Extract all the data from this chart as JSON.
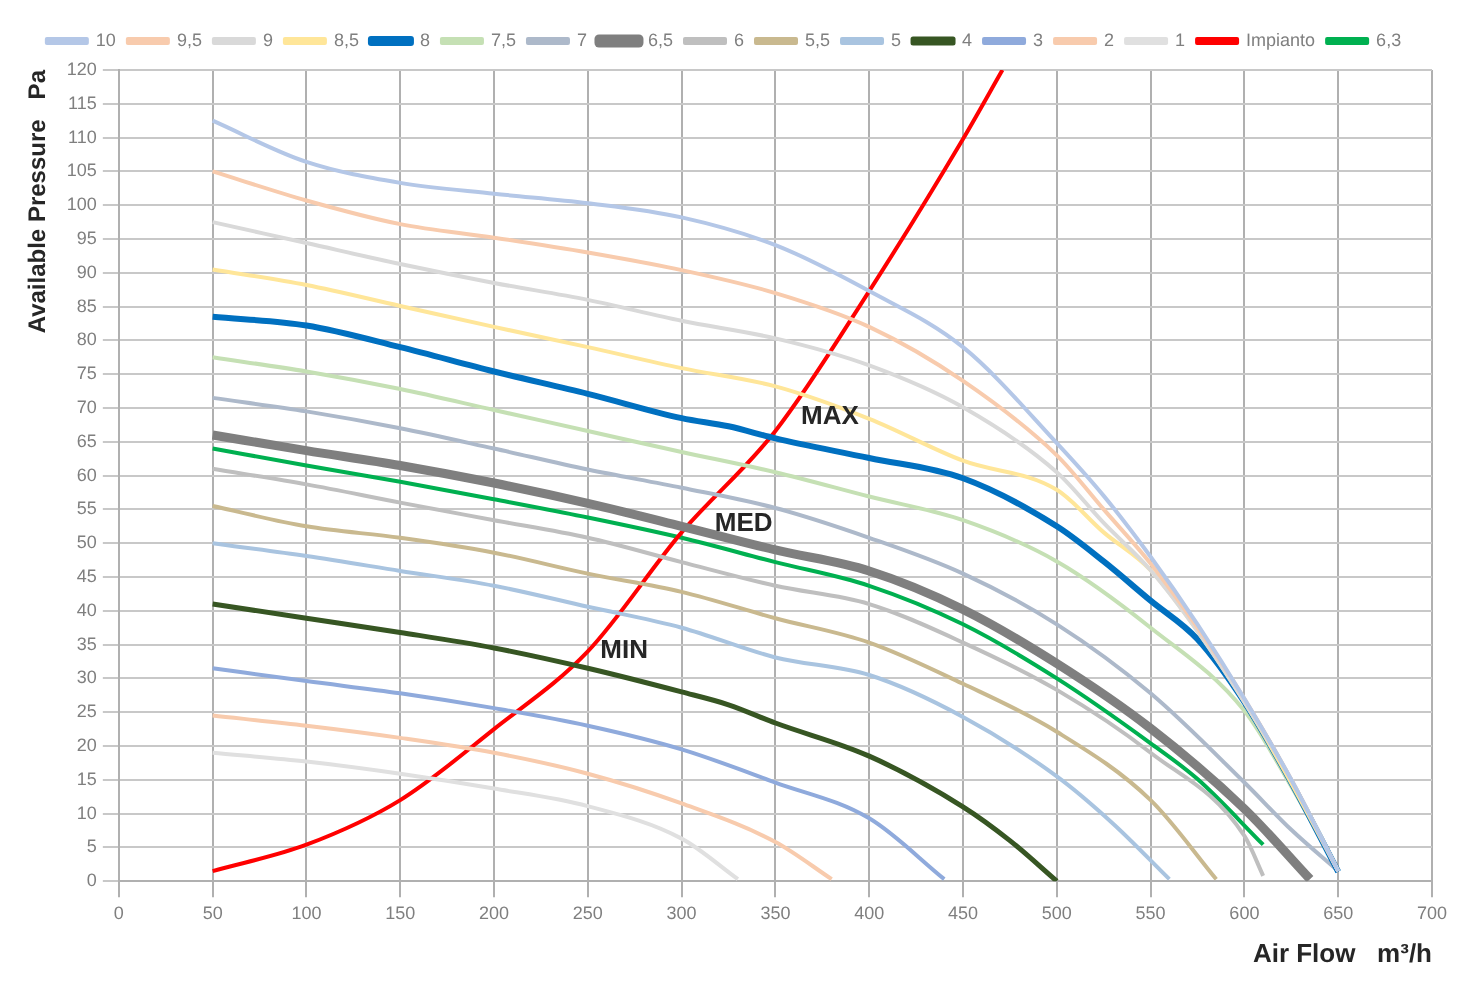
{
  "chart_data": {
    "type": "line",
    "xlabel": "Air Flow   m³/h",
    "ylabel": "Available Pressure   Pa",
    "xlim": [
      0,
      700
    ],
    "xticks": [
      0,
      50,
      100,
      150,
      200,
      250,
      300,
      350,
      400,
      450,
      500,
      550,
      600,
      650,
      700
    ],
    "ylim": [
      0,
      120
    ],
    "yticks": [
      0,
      5,
      10,
      15,
      20,
      25,
      30,
      35,
      40,
      45,
      50,
      55,
      60,
      65,
      70,
      75,
      80,
      85,
      90,
      95,
      100,
      105,
      110,
      115,
      120
    ],
    "grid": true,
    "legend": "top",
    "marker": "none",
    "line_style": "solid",
    "annotations": [
      {
        "text": "MAX",
        "x": 353,
        "y": 66.4
      },
      {
        "text": "MED",
        "x": 307,
        "y": 50.6
      },
      {
        "text": "MIN",
        "x": 246,
        "y": 31.8
      }
    ],
    "series": [
      {
        "name": "10",
        "color": "#b4c7e7",
        "x": [
          50,
          100,
          150,
          200,
          250,
          300,
          350,
          400,
          450,
          500,
          525,
          550,
          575,
          600,
          625,
          650
        ],
        "values": [
          112.5,
          106.4,
          103.3,
          101.7,
          100.3,
          98.2,
          94.1,
          87.3,
          79,
          64.8,
          57,
          48,
          38,
          27,
          15,
          1.5
        ]
      },
      {
        "name": "9,5",
        "color": "#f8cbad",
        "x": [
          50,
          100,
          150,
          200,
          250,
          300,
          350,
          400,
          450,
          500,
          525,
          550,
          575,
          600,
          625,
          650
        ],
        "values": [
          105,
          100.7,
          97.2,
          95.2,
          93,
          90.4,
          87,
          82,
          74,
          63,
          55,
          47,
          37.5,
          27,
          15,
          1.5
        ]
      },
      {
        "name": "9",
        "color": "#d9d9d9",
        "x": [
          50,
          100,
          150,
          200,
          250,
          300,
          350,
          400,
          450,
          500,
          525,
          550,
          575,
          600,
          625,
          650
        ],
        "values": [
          97.5,
          94.4,
          91.3,
          88.5,
          86,
          82.9,
          80.3,
          76.3,
          70.1,
          60.5,
          53,
          46,
          37,
          26.5,
          15,
          1.5
        ]
      },
      {
        "name": "8,5",
        "color": "#ffe699",
        "x": [
          50,
          100,
          150,
          200,
          250,
          300,
          350,
          400,
          450,
          500,
          525,
          550,
          575,
          600,
          625,
          650
        ],
        "values": [
          90.5,
          88.2,
          85.1,
          82,
          79,
          75.9,
          73.2,
          68.4,
          62.2,
          57.9,
          51.6,
          46,
          37,
          26.5,
          14.5,
          1.5
        ]
      },
      {
        "name": "8",
        "color": "#0070c0",
        "x": [
          50,
          100,
          150,
          200,
          250,
          300,
          325,
          350,
          400,
          450,
          500,
          525,
          550,
          575,
          600,
          625,
          650
        ],
        "values": [
          83.5,
          82.2,
          79,
          75.4,
          72.1,
          68.5,
          67.3,
          65.5,
          62.6,
          59.6,
          52.5,
          47.3,
          41.5,
          35.8,
          26.5,
          14.6,
          1.4
        ]
      },
      {
        "name": "7,5",
        "color": "#c5e0b4",
        "x": [
          50,
          100,
          150,
          200,
          250,
          300,
          350,
          400,
          450,
          500,
          550,
          600,
          625,
          650
        ],
        "values": [
          77.5,
          75.4,
          72.8,
          69.7,
          66.6,
          63.5,
          60.5,
          56.9,
          53.4,
          47.3,
          37.5,
          25.2,
          14,
          1.5
        ]
      },
      {
        "name": "7",
        "color": "#adb9ca",
        "x": [
          50,
          100,
          150,
          200,
          250,
          300,
          350,
          400,
          450,
          500,
          550,
          600,
          625,
          650
        ],
        "values": [
          71.5,
          69.5,
          67,
          64,
          60.9,
          58.2,
          55.2,
          50.8,
          45.5,
          38,
          27.8,
          14.6,
          7.6,
          1.5
        ]
      },
      {
        "name": "6,5",
        "color": "#7f7f7f",
        "x": [
          50,
          100,
          150,
          200,
          250,
          300,
          350,
          400,
          450,
          500,
          550,
          600,
          635
        ],
        "values": [
          66,
          63.7,
          61.5,
          58.9,
          55.9,
          52.5,
          49,
          45.9,
          40.2,
          32.2,
          22.6,
          10.7,
          0.3
        ]
      },
      {
        "name": "6",
        "color": "#bfbfbf",
        "x": [
          50,
          100,
          150,
          200,
          250,
          300,
          350,
          400,
          450,
          500,
          550,
          600,
          610
        ],
        "values": [
          61,
          58.7,
          56,
          53.4,
          50.8,
          47.2,
          43.7,
          41,
          35.3,
          28.3,
          19,
          6.7,
          0.8
        ]
      },
      {
        "name": "5,5",
        "color": "#c9b98f",
        "x": [
          50,
          100,
          150,
          200,
          250,
          300,
          350,
          400,
          450,
          500,
          550,
          585
        ],
        "values": [
          55.5,
          52.5,
          50.8,
          48.6,
          45.5,
          42.8,
          38.9,
          35.3,
          29.2,
          22.1,
          12,
          0.3
        ]
      },
      {
        "name": "5",
        "color": "#a9c4e0",
        "x": [
          50,
          100,
          150,
          200,
          250,
          300,
          350,
          400,
          450,
          500,
          530,
          560
        ],
        "values": [
          50,
          48.1,
          45.9,
          43.7,
          40.6,
          37.5,
          33.1,
          30.5,
          24.3,
          15.5,
          8.5,
          0.3
        ]
      },
      {
        "name": "4",
        "color": "#375623",
        "x": [
          50,
          100,
          150,
          200,
          250,
          300,
          325,
          350,
          400,
          450,
          475,
          500
        ],
        "values": [
          41,
          38.9,
          36.8,
          34.5,
          31.5,
          28,
          26.1,
          23.4,
          18.5,
          11,
          6,
          0
        ]
      },
      {
        "name": "3",
        "color": "#8faadc",
        "x": [
          50,
          100,
          150,
          200,
          250,
          300,
          350,
          400,
          440
        ],
        "values": [
          31.5,
          29.6,
          27.8,
          25.6,
          23,
          19.5,
          14.6,
          9.3,
          0.3
        ]
      },
      {
        "name": "2",
        "color": "#f8cbad",
        "x": [
          50,
          100,
          150,
          200,
          250,
          300,
          350,
          380
        ],
        "values": [
          24.5,
          23,
          21.2,
          19,
          15.9,
          11.5,
          5.8,
          0.3
        ]
      },
      {
        "name": "1",
        "color": "#e0e0e0",
        "x": [
          50,
          100,
          150,
          200,
          250,
          300,
          330
        ],
        "values": [
          19,
          17.7,
          15.9,
          13.7,
          11.1,
          6.3,
          0.3
        ]
      },
      {
        "name": "Impianto",
        "color": "#ff0000",
        "x": [
          50,
          100,
          150,
          200,
          250,
          300,
          350,
          400,
          450,
          471
        ],
        "values": [
          1.5,
          5.4,
          12,
          22.5,
          34,
          51.6,
          66.6,
          87.3,
          109.8,
          120
        ]
      },
      {
        "name": "6,3",
        "color": "#00b050",
        "x": [
          50,
          100,
          150,
          200,
          250,
          300,
          350,
          400,
          450,
          500,
          550,
          575,
          610
        ],
        "values": [
          64,
          61.5,
          59.1,
          56.5,
          53.8,
          50.8,
          47.2,
          43.7,
          38,
          30,
          20.4,
          15.1,
          5.4
        ]
      }
    ]
  }
}
